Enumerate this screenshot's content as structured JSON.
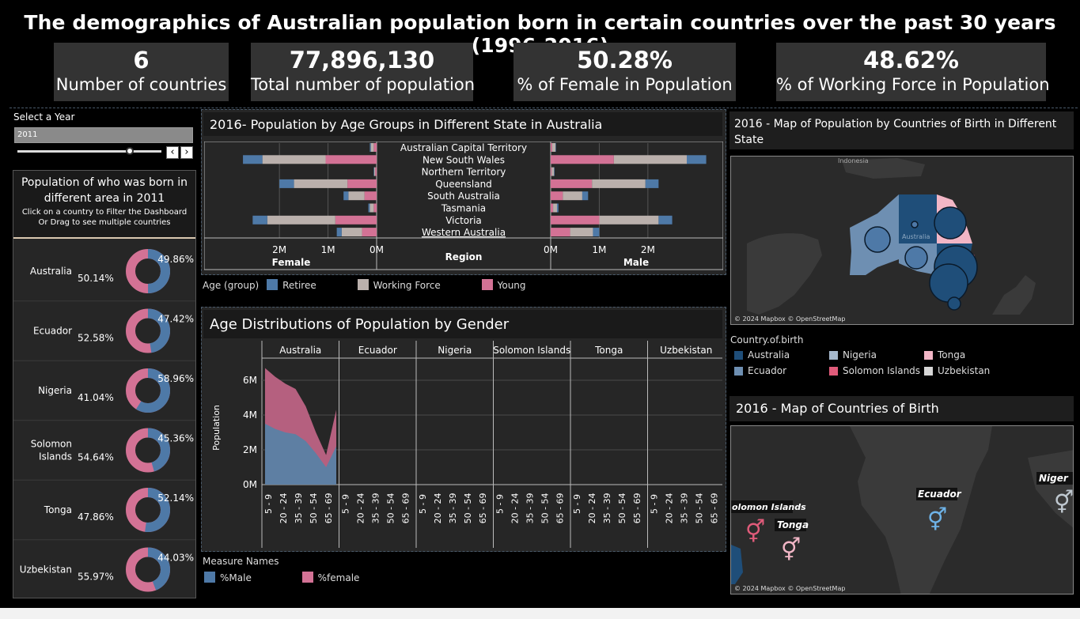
{
  "title": "The demographics of Australian population born in certain countries over the past 30 years (1996-2016)",
  "kpis": [
    {
      "value": "6",
      "label": "Number of countries"
    },
    {
      "value": "77,896,130",
      "label": "Total number of population"
    },
    {
      "value": "50.28%",
      "label": "% of Female in Population"
    },
    {
      "value": "48.62%",
      "label": "% of Working Force in Population"
    }
  ],
  "year_filter": {
    "label": "Select a Year",
    "value": "2011",
    "slider_fraction": 0.78
  },
  "colors": {
    "retiree": "#4e79a7",
    "working": "#bab0ac",
    "young": "#d37295",
    "male": "#4e79a7",
    "female": "#d37295"
  },
  "donut_panel": {
    "title": "Population of who was born in different area in 2011",
    "subtitle1": "Click on a country to Filter the Dashboard",
    "subtitle2": "Or Drag to see multiple countries"
  },
  "chart_data": [
    {
      "type": "pie",
      "title": "Population of who was born in different area in 2011",
      "series": [
        {
          "name": "Australia",
          "female": 50.14,
          "male": 49.86,
          "female_label": "50.14%",
          "male_label": "49.86%"
        },
        {
          "name": "Ecuador",
          "female": 52.58,
          "male": 47.42,
          "female_label": "52.58%",
          "male_label": "47.42%"
        },
        {
          "name": "Nigeria",
          "female": 41.04,
          "male": 58.96,
          "female_label": "41.04%",
          "male_label": "58.96%"
        },
        {
          "name": "Solomon Islands",
          "female": 54.64,
          "male": 45.36,
          "female_label": "54.64%",
          "male_label": "45.36%"
        },
        {
          "name": "Tonga",
          "female": 47.86,
          "male": 52.14,
          "female_label": "47.86%",
          "male_label": "52.14%"
        },
        {
          "name": "Uzbekistan",
          "female": 55.97,
          "male": 44.03,
          "female_label": "55.97%",
          "male_label": "44.03%"
        }
      ]
    },
    {
      "type": "bar",
      "title": "2016- Population by Age Groups in Different State in Australia",
      "categories": [
        "Australian Capital Territory",
        "New South Wales",
        "Northern Territory",
        "Queensland",
        "South Australia",
        "Tasmania",
        "Victoria",
        "Western Australia"
      ],
      "female": {
        "young": [
          0.06,
          1.05,
          0.03,
          0.6,
          0.25,
          0.06,
          0.85,
          0.3
        ],
        "working": [
          0.06,
          1.3,
          0.02,
          1.1,
          0.33,
          0.08,
          1.4,
          0.42
        ],
        "retiree": [
          0.02,
          0.4,
          0.01,
          0.3,
          0.1,
          0.03,
          0.3,
          0.1
        ]
      },
      "male": {
        "young": [
          0.03,
          1.3,
          0.02,
          0.85,
          0.25,
          0.05,
          1.0,
          0.4
        ],
        "working": [
          0.07,
          1.5,
          0.05,
          1.1,
          0.4,
          0.08,
          1.22,
          0.47
        ],
        "retiree": [
          0.01,
          0.4,
          0.01,
          0.27,
          0.12,
          0.03,
          0.28,
          0.13
        ]
      },
      "female_label": "Female",
      "male_label": "Male",
      "region_label": "Region",
      "ticks_female": [
        "2M",
        "1M",
        "0M"
      ],
      "ticks_male": [
        "0M",
        "1M",
        "2M"
      ],
      "max": 2.8
    },
    {
      "type": "area",
      "title": "Age Distributions of Population by Gender",
      "ylabel": "Population",
      "panels": [
        "Australia",
        "Ecuador",
        "Nigeria",
        "Solomon Islands",
        "Tonga",
        "Uzbekistan"
      ],
      "x": [
        "5 - 9",
        "20 - 24",
        "35 - 39",
        "50 - 54",
        "65 - 69"
      ],
      "australia_male": [
        3.5,
        3.2,
        3.0,
        2.9,
        2.5,
        1.8,
        1.0,
        2.2
      ],
      "australia_total": [
        6.7,
        6.2,
        5.8,
        5.5,
        4.5,
        3.0,
        1.7,
        4.3
      ],
      "yticks": [
        "6M",
        "4M",
        "2M",
        "0M"
      ],
      "ylim": [
        0,
        7
      ]
    }
  ],
  "age_legend": {
    "title": "Age (group)",
    "items": [
      "Retiree",
      "Working Force",
      "Young"
    ]
  },
  "measure_legend": {
    "title": "Measure Names",
    "items": [
      "%Male",
      "%female"
    ]
  },
  "map1": {
    "title": "2016 - Map of Population by Countries of Birth in Different State",
    "attribution": "© 2024 Mapbox © OpenStreetMap",
    "labels": [
      "Indonesia",
      "Australia"
    ]
  },
  "country_legend": {
    "title": "Country.of.birth",
    "items": [
      {
        "name": "Australia",
        "color": "#1f4e79"
      },
      {
        "name": "Nigeria",
        "color": "#a5b8cc"
      },
      {
        "name": "Tonga",
        "color": "#f2b6c6"
      },
      {
        "name": "Ecuador",
        "color": "#6e8fb2"
      },
      {
        "name": "Solomon Islands",
        "color": "#e05b7a"
      },
      {
        "name": "Uzbekistan",
        "color": "#d6d6d6"
      }
    ]
  },
  "map2": {
    "title": "2016 - Map of Countries of Birth",
    "attribution": "© 2024 Mapbox © OpenStreetMap",
    "labels": [
      "Ecuador",
      "olomon Islands",
      "Tonga",
      "Niger"
    ]
  }
}
